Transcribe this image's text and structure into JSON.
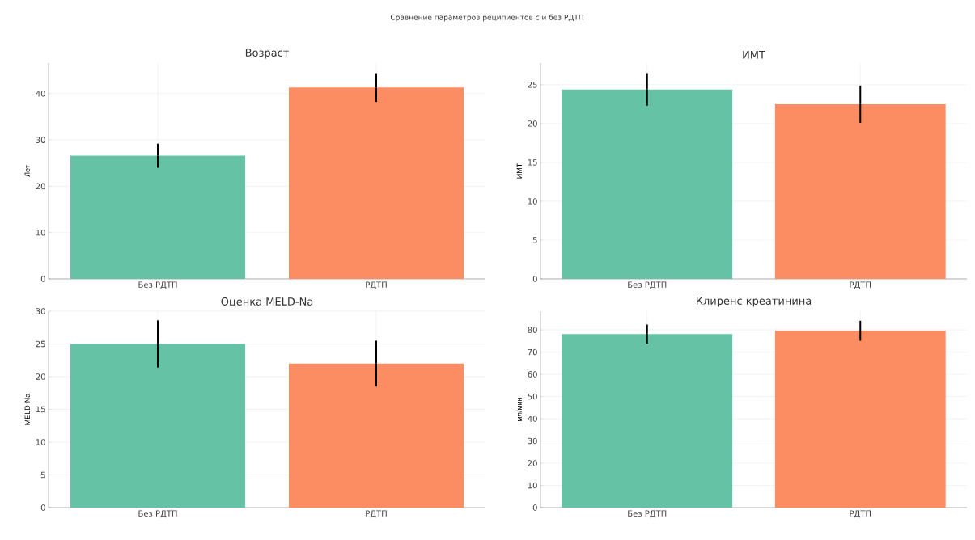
{
  "chart_data": [
    {
      "type": "bar",
      "title": "Возраст",
      "ylabel": "Лет",
      "annotations": [
        "Сравнение параметров реципиентов с и без РДТП"
      ],
      "categories": [
        "Без РДТП",
        "РДТП"
      ],
      "values": [
        26.6,
        41.3
      ],
      "errors": [
        2.6,
        3.1
      ],
      "colors": [
        "#66c2a5",
        "#fc8d62"
      ],
      "ylim": [
        0,
        46.6
      ],
      "yticks": [
        0,
        10,
        20,
        30,
        40
      ],
      "grid": true
    },
    {
      "type": "bar",
      "title": "ИМТ",
      "ylabel": "ИМТ",
      "categories": [
        "Без РДТП",
        "РДТП"
      ],
      "values": [
        24.4,
        22.5
      ],
      "errors": [
        2.1,
        2.4
      ],
      "colors": [
        "#66c2a5",
        "#fc8d62"
      ],
      "ylim": [
        0,
        27.8
      ],
      "yticks": [
        0,
        5,
        10,
        15,
        20,
        25
      ],
      "grid": true
    },
    {
      "type": "bar",
      "title": "Оценка MELD-Na",
      "ylabel": "MELD-Na",
      "categories": [
        "Без РДТП",
        "РДТП"
      ],
      "values": [
        25.0,
        22.0
      ],
      "errors": [
        3.6,
        3.5
      ],
      "colors": [
        "#66c2a5",
        "#fc8d62"
      ],
      "ylim": [
        0,
        30
      ],
      "yticks": [
        0,
        5,
        10,
        15,
        20,
        25,
        30
      ],
      "grid": true
    },
    {
      "type": "bar",
      "title": "Клиренс креатинина",
      "ylabel": "мл/мин",
      "categories": [
        "Без РДТП",
        "РДТП"
      ],
      "values": [
        78.1,
        79.6
      ],
      "errors": [
        4.3,
        4.5
      ],
      "colors": [
        "#66c2a5",
        "#fc8d62"
      ],
      "ylim": [
        0,
        88.4
      ],
      "yticks": [
        0,
        10,
        20,
        30,
        40,
        50,
        60,
        70,
        80
      ],
      "grid": true
    }
  ]
}
